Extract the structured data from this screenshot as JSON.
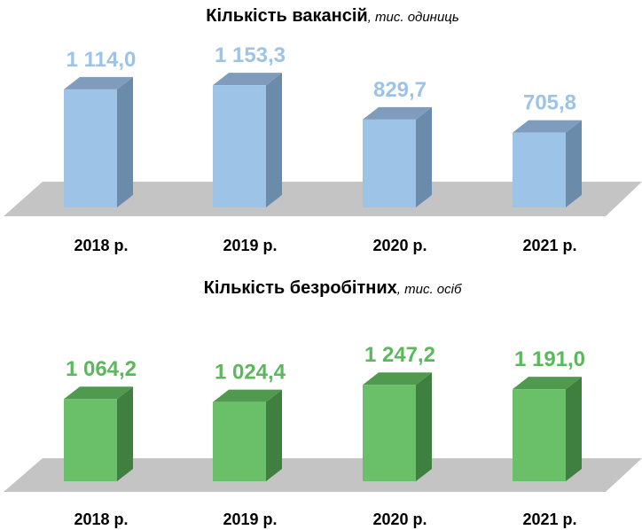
{
  "chart_data": [
    {
      "type": "bar",
      "title": "Кількість вакансій",
      "title_unit": ", тис. одиниць",
      "categories": [
        "2018 р.",
        "2019 р.",
        "2020 р.",
        "2021 р."
      ],
      "values": [
        1114.0,
        1153.3,
        829.7,
        705.8
      ],
      "value_labels": [
        "1 114,0",
        "1 153,3",
        "829,7",
        "705,8"
      ],
      "colors": {
        "front": "#9dc3e6",
        "side": "#6b8bab",
        "top": "#7f9cbc",
        "label": "#9dc3e6",
        "floor": "#c4c4c4"
      }
    },
    {
      "type": "bar",
      "title": "Кількість безробітних",
      "title_unit": ", тис. осіб",
      "categories": [
        "2018 р.",
        "2019 р.",
        "2020 р.",
        "2021 р."
      ],
      "values": [
        1064.2,
        1024.4,
        1247.2,
        1191.0
      ],
      "value_labels": [
        "1 064,2",
        "1 024,4",
        "1 247,2",
        "1 191,0"
      ],
      "colors": {
        "front": "#6abf69",
        "side": "#3f7f3f",
        "top": "#4f9a4f",
        "label": "#5cb85c",
        "floor": "#c4c4c4"
      }
    }
  ]
}
